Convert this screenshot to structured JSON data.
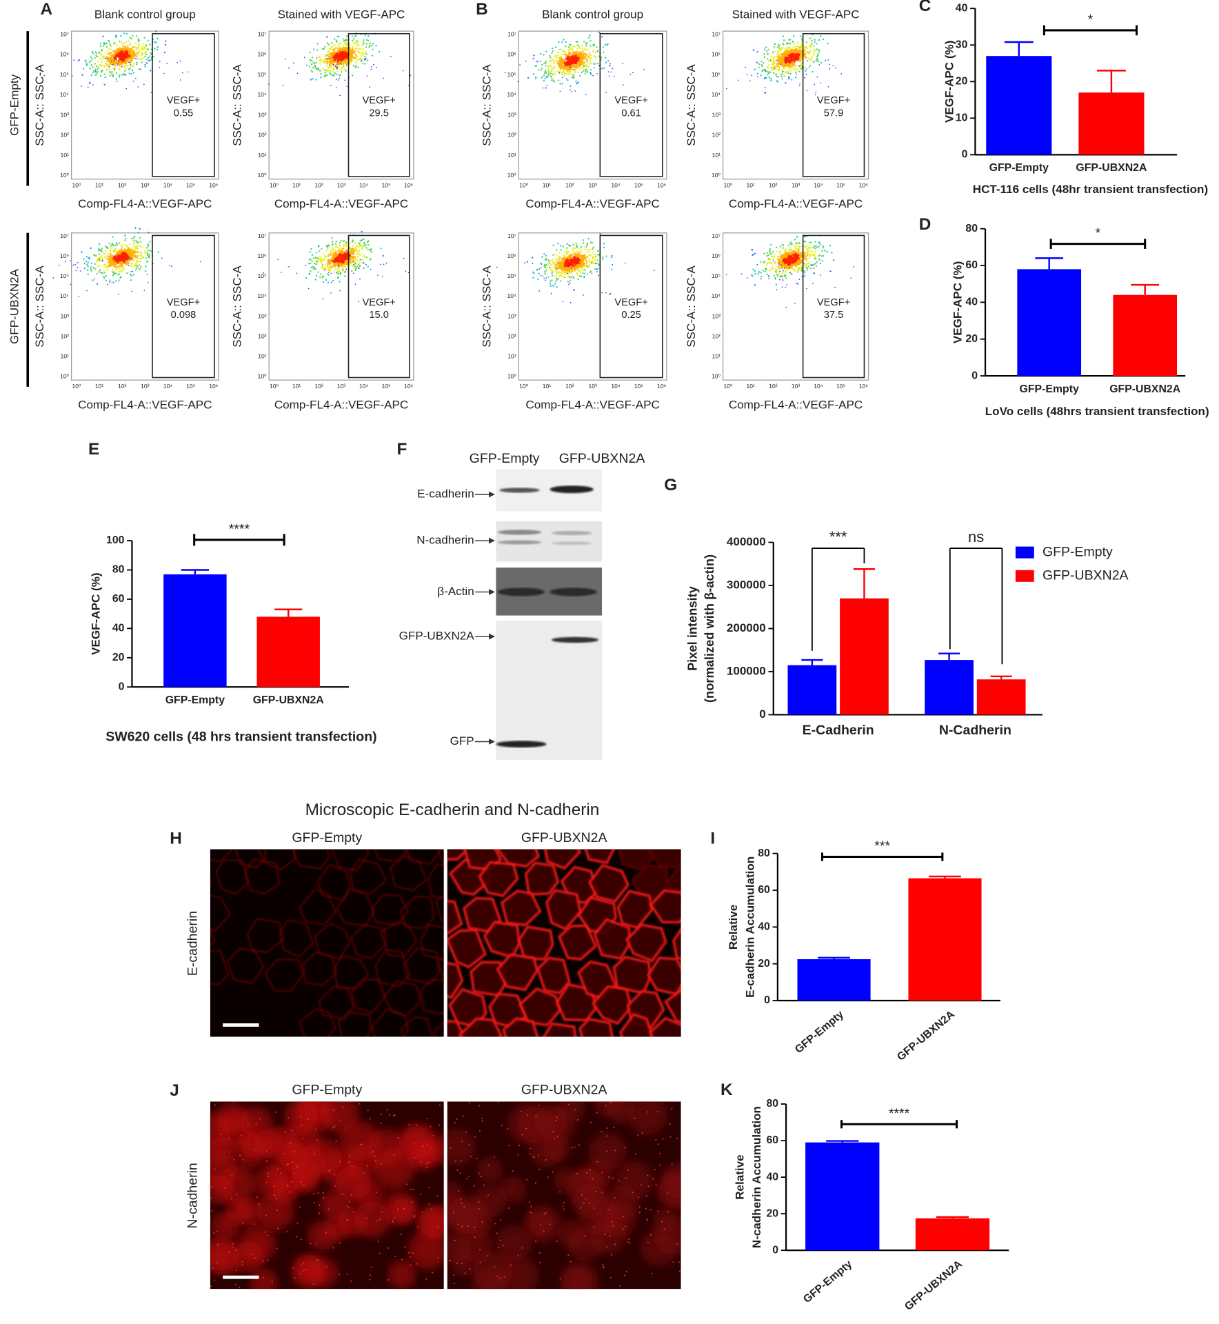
{
  "flow": {
    "y_axis_label": "SSC-A:: SSC-A",
    "x_axis_label": "Comp-FL4-A::VEGF-APC",
    "gate_label": "VEGF+",
    "yticks": [
      "10⁰",
      "10¹",
      "10²",
      "10³",
      "10⁴",
      "10⁵",
      "10⁶",
      "10⁷"
    ],
    "xticks": [
      "10⁰",
      "10¹",
      "10²",
      "10³",
      "10⁴",
      "10⁵",
      "10⁶"
    ],
    "panels": [
      {
        "label": "A",
        "columns": [
          "Blank control group",
          "Stained with VEGF-APC"
        ],
        "rows": [
          "GFP-Empty",
          "GFP-UBXN2A"
        ],
        "gates": [
          [
            "0.55",
            "29.5"
          ],
          [
            "0.098",
            "15.0"
          ]
        ]
      },
      {
        "label": "B",
        "columns": [
          "Blank control group",
          "Stained with VEGF-APC"
        ],
        "gates": [
          [
            "0.61",
            "57.9"
          ],
          [
            "0.25",
            "37.5"
          ]
        ]
      }
    ]
  },
  "blot": {
    "label": "F",
    "lanes": [
      "GFP-Empty",
      "GFP-UBXN2A"
    ],
    "bands": [
      "E-cadherin",
      "N-cadherin",
      "β-Actin",
      "GFP-UBXN2A",
      "GFP"
    ]
  },
  "microscopy": {
    "title": "Microscopic E-cadherin and N-cadherin",
    "lanes": [
      "GFP-Empty",
      "GFP-UBXN2A"
    ],
    "panels": [
      {
        "label": "H",
        "stain": "E-cadherin"
      },
      {
        "label": "J",
        "stain": "N-cadherin"
      }
    ]
  },
  "chart_data": [
    {
      "type": "bar",
      "panel": "C",
      "ylabel": "VEGF-APC (%)",
      "categories": [
        "GFP-Empty",
        "GFP-UBXN2A"
      ],
      "values": [
        27,
        17
      ],
      "errors": [
        3.8,
        6
      ],
      "colors": [
        "#0000ff",
        "#ff0000"
      ],
      "ylim": [
        0,
        40
      ],
      "yticks": [
        0,
        10,
        20,
        30,
        40
      ],
      "significance": [
        "*"
      ],
      "caption": "HCT-116 cells (48hr transient transfection)"
    },
    {
      "type": "bar",
      "panel": "D",
      "ylabel": "VEGF-APC (%)",
      "categories": [
        "GFP-Empty",
        "GFP-UBXN2A"
      ],
      "values": [
        58,
        44
      ],
      "errors": [
        6,
        5.5
      ],
      "colors": [
        "#0000ff",
        "#ff0000"
      ],
      "ylim": [
        0,
        80
      ],
      "yticks": [
        0,
        20,
        40,
        60,
        80
      ],
      "significance": [
        "*"
      ],
      "caption": "LoVo cells (48hrs transient transfection)"
    },
    {
      "type": "bar",
      "panel": "E",
      "ylabel": "VEGF-APC (%)",
      "categories": [
        "GFP-Empty",
        "GFP-UBXN2A"
      ],
      "values": [
        77,
        48
      ],
      "errors": [
        3,
        5
      ],
      "colors": [
        "#0000ff",
        "#ff0000"
      ],
      "ylim": [
        0,
        100
      ],
      "yticks": [
        0,
        20,
        40,
        60,
        80,
        100
      ],
      "significance": [
        "****"
      ],
      "caption": "SW620 cells (48 hrs transient transfection)"
    },
    {
      "type": "bar",
      "panel": "G",
      "ylabel": [
        "Pixel intensity",
        "(normalized with β-actin)"
      ],
      "categories": [
        "E-Cadherin",
        "N-Cadherin"
      ],
      "series": [
        {
          "name": "GFP-Empty",
          "color": "#0000ff",
          "values": [
            115000,
            127000
          ],
          "errors": [
            12000,
            15000
          ]
        },
        {
          "name": "GFP-UBXN2A",
          "color": "#ff0000",
          "values": [
            270000,
            82000
          ],
          "errors": [
            68000,
            7000
          ]
        }
      ],
      "ylim": [
        0,
        400000
      ],
      "yticks": [
        0,
        100000,
        200000,
        300000,
        400000
      ],
      "significance": [
        "***",
        "ns"
      ],
      "legend": "right"
    },
    {
      "type": "bar",
      "panel": "I",
      "ylabel": [
        "Relative",
        "E-cadherin Accumulation"
      ],
      "categories": [
        "GFP-Empty",
        "GFP-UBXN2A"
      ],
      "values": [
        22.5,
        66.5
      ],
      "errors": [
        0.8,
        1
      ],
      "colors": [
        "#0000ff",
        "#ff0000"
      ],
      "ylim": [
        0,
        80
      ],
      "yticks": [
        0,
        20,
        40,
        60,
        80
      ],
      "significance": [
        "***"
      ]
    },
    {
      "type": "bar",
      "panel": "K",
      "ylabel": [
        "Relative",
        "N-cadherin Accumulation"
      ],
      "categories": [
        "GFP-Empty",
        "GFP-UBXN2A"
      ],
      "values": [
        59,
        17.5
      ],
      "errors": [
        0.8,
        0.7
      ],
      "colors": [
        "#0000ff",
        "#ff0000"
      ],
      "ylim": [
        0,
        80
      ],
      "yticks": [
        0,
        20,
        40,
        60,
        80
      ],
      "significance": [
        "****"
      ]
    }
  ]
}
